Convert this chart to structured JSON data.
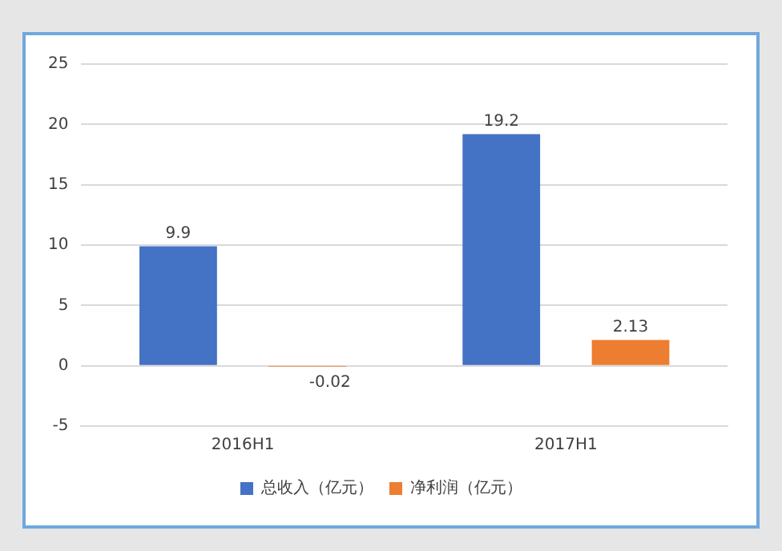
{
  "chart_data": {
    "type": "bar",
    "categories": [
      "2016H1",
      "2017H1"
    ],
    "series": [
      {
        "name": "总收入（亿元）",
        "color": "#4472c4",
        "values": [
          9.9,
          19.2
        ]
      },
      {
        "name": "净利润（亿元）",
        "color": "#ed7d31",
        "values": [
          -0.02,
          2.13
        ]
      }
    ],
    "ylim": [
      -5,
      25
    ],
    "yticks": [
      -5,
      0,
      5,
      10,
      15,
      20,
      25
    ],
    "grid": "y",
    "legend": "bottom",
    "data_labels": true
  }
}
